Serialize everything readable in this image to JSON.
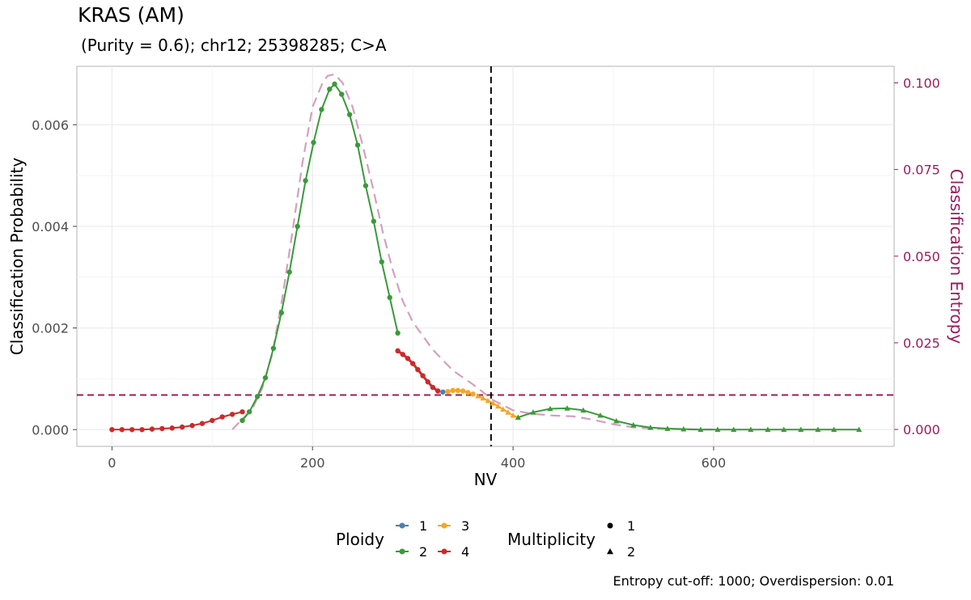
{
  "header": {
    "title": "KRAS (AM)",
    "subtitle": " (Purity = 0.6); chr12; 25398285; C>A",
    "caption": "Entropy cut-off: 1000; Overdispersion: 0.01"
  },
  "legend": {
    "ploidy_title": "Ploidy",
    "ploidy_items": [
      {
        "label": "1",
        "color": "#4682b4"
      },
      {
        "label": "2",
        "color": "#3a9a3a"
      },
      {
        "label": "3",
        "color": "#f5a623"
      },
      {
        "label": "4",
        "color": "#cc2a2a"
      }
    ],
    "multiplicity_title": "Multiplicity",
    "multiplicity_items": [
      {
        "label": "1",
        "shape": "circle"
      },
      {
        "label": "2",
        "shape": "triangle"
      }
    ]
  },
  "chart_data": {
    "type": "line",
    "xlabel": "NV",
    "ylabel": "Classification Probability",
    "y2label": "Classification Entropy",
    "xlim": [
      -35,
      780
    ],
    "ylim": [
      -0.00033,
      0.00715
    ],
    "y2lim": [
      -0.00488,
      0.10478
    ],
    "xticks": [
      0,
      200,
      400,
      600
    ],
    "yticks": [
      0.0,
      0.002,
      0.004,
      0.006
    ],
    "ytick_labels": [
      "0.000",
      "0.002",
      "0.004",
      "0.006"
    ],
    "y2ticks": [
      0,
      0.025,
      0.05,
      0.075,
      0.1
    ],
    "y2tick_labels": [
      "0.000",
      "0.025",
      "0.050",
      "0.075",
      "0.100"
    ],
    "grid": true,
    "legend_position": "bottom",
    "vline_x": 378,
    "hline_y": 0.00068,
    "colors": {
      "ploidy1": "#4682b4",
      "ploidy2": "#3a9a3a",
      "ploidy3": "#f5a623",
      "ploidy4": "#cc2a2a",
      "entropy": "#9b1c5e",
      "entropy_curve": "#d4a0bd"
    },
    "series": [
      {
        "ploidy": "4",
        "multiplicity": "1",
        "x": [
          0,
          10,
          20,
          30,
          40,
          50,
          60,
          70,
          80,
          90,
          100,
          110,
          120,
          130
        ],
        "y": [
          0.0,
          0.0,
          0.0,
          0.0,
          1e-05,
          2e-05,
          3e-05,
          5e-05,
          8e-05,
          0.00012,
          0.00018,
          0.00025,
          0.0003,
          0.00035
        ]
      },
      {
        "ploidy": "2",
        "multiplicity": "1",
        "x": [
          130,
          137,
          145,
          153,
          161,
          169,
          177,
          185,
          193,
          201,
          209,
          217,
          222,
          229,
          237,
          245,
          253,
          261,
          269,
          277,
          285
        ],
        "y": [
          0.00018,
          0.00035,
          0.00065,
          0.00102,
          0.0016,
          0.0023,
          0.0031,
          0.004,
          0.0049,
          0.00565,
          0.0063,
          0.0067,
          0.0068,
          0.0066,
          0.0062,
          0.0056,
          0.0048,
          0.0041,
          0.0033,
          0.0026,
          0.0019
        ]
      },
      {
        "ploidy": "4",
        "multiplicity": "1",
        "x": [
          285,
          290,
          295,
          300,
          305,
          310,
          315,
          320,
          325
        ],
        "y": [
          0.00155,
          0.00148,
          0.0014,
          0.0013,
          0.00118,
          0.00106,
          0.00094,
          0.00083,
          0.00076
        ]
      },
      {
        "ploidy": "1",
        "multiplicity": "1",
        "x": [
          330
        ],
        "y": [
          0.00074
        ]
      },
      {
        "ploidy": "3",
        "multiplicity": "1",
        "x": [
          335,
          340,
          345,
          350,
          355,
          360
        ],
        "y": [
          0.00075,
          0.00077,
          0.00077,
          0.00076,
          0.00073,
          0.0007
        ]
      },
      {
        "ploidy": "3",
        "multiplicity": "2",
        "x": [
          365,
          370,
          375,
          380,
          385,
          390,
          395,
          400,
          405
        ],
        "y": [
          0.00066,
          0.00062,
          0.00057,
          0.00052,
          0.00046,
          0.0004,
          0.00034,
          0.00028,
          0.00024
        ]
      },
      {
        "ploidy": "2",
        "multiplicity": "2",
        "x": [
          405,
          420,
          437,
          454,
          470,
          487,
          503,
          520,
          537,
          554,
          570,
          587,
          604,
          620,
          637,
          654,
          670,
          687,
          704,
          720,
          745
        ],
        "y": [
          0.00024,
          0.00034,
          0.00041,
          0.00042,
          0.00038,
          0.00028,
          0.00017,
          9e-05,
          4e-05,
          2e-05,
          1e-05,
          0.0,
          0.0,
          0.0,
          0.0,
          0.0,
          0.0,
          0.0,
          0.0,
          0.0,
          0.0
        ]
      }
    ],
    "entropy": {
      "x": [
        120,
        130,
        140,
        150,
        160,
        170,
        180,
        190,
        200,
        210,
        215,
        222,
        230,
        240,
        250,
        260,
        270,
        280,
        290,
        300,
        320,
        340,
        360,
        380,
        400,
        420,
        440,
        460,
        480,
        500,
        520,
        540,
        560,
        580,
        600
      ],
      "y": [
        0.0,
        0.003,
        0.006,
        0.012,
        0.022,
        0.038,
        0.057,
        0.077,
        0.093,
        0.1,
        0.102,
        0.1025,
        0.1,
        0.093,
        0.082,
        0.07,
        0.057,
        0.046,
        0.037,
        0.031,
        0.023,
        0.017,
        0.013,
        0.0085,
        0.0055,
        0.0045,
        0.004,
        0.0038,
        0.0028,
        0.0015,
        0.0006,
        0.0002,
        0.0001,
        0.0,
        0.0
      ]
    }
  }
}
